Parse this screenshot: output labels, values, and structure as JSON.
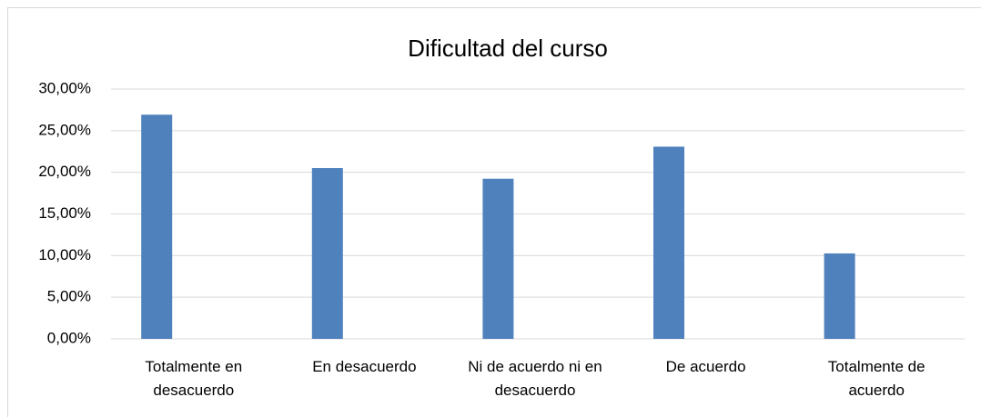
{
  "chart_data": {
    "type": "bar",
    "title": "Dificultad del curso",
    "categories": [
      "Totalmente en desacuerdo",
      "En desacuerdo",
      "Ni de acuerdo ni en desacuerdo",
      "De acuerdo",
      "Totalmente de acuerdo"
    ],
    "values": [
      26.92,
      20.51,
      19.23,
      23.08,
      10.26
    ],
    "color": "#4f81bd",
    "ylim": [
      0,
      30
    ],
    "yticks": [
      {
        "value": 0,
        "label": "0,00%"
      },
      {
        "value": 5,
        "label": "5,00%"
      },
      {
        "value": 10,
        "label": "10,00%"
      },
      {
        "value": 15,
        "label": "15,00%"
      },
      {
        "value": 20,
        "label": "20,00%"
      },
      {
        "value": 25,
        "label": "25,00%"
      },
      {
        "value": 30,
        "label": "30,00%"
      }
    ],
    "grid": true
  }
}
